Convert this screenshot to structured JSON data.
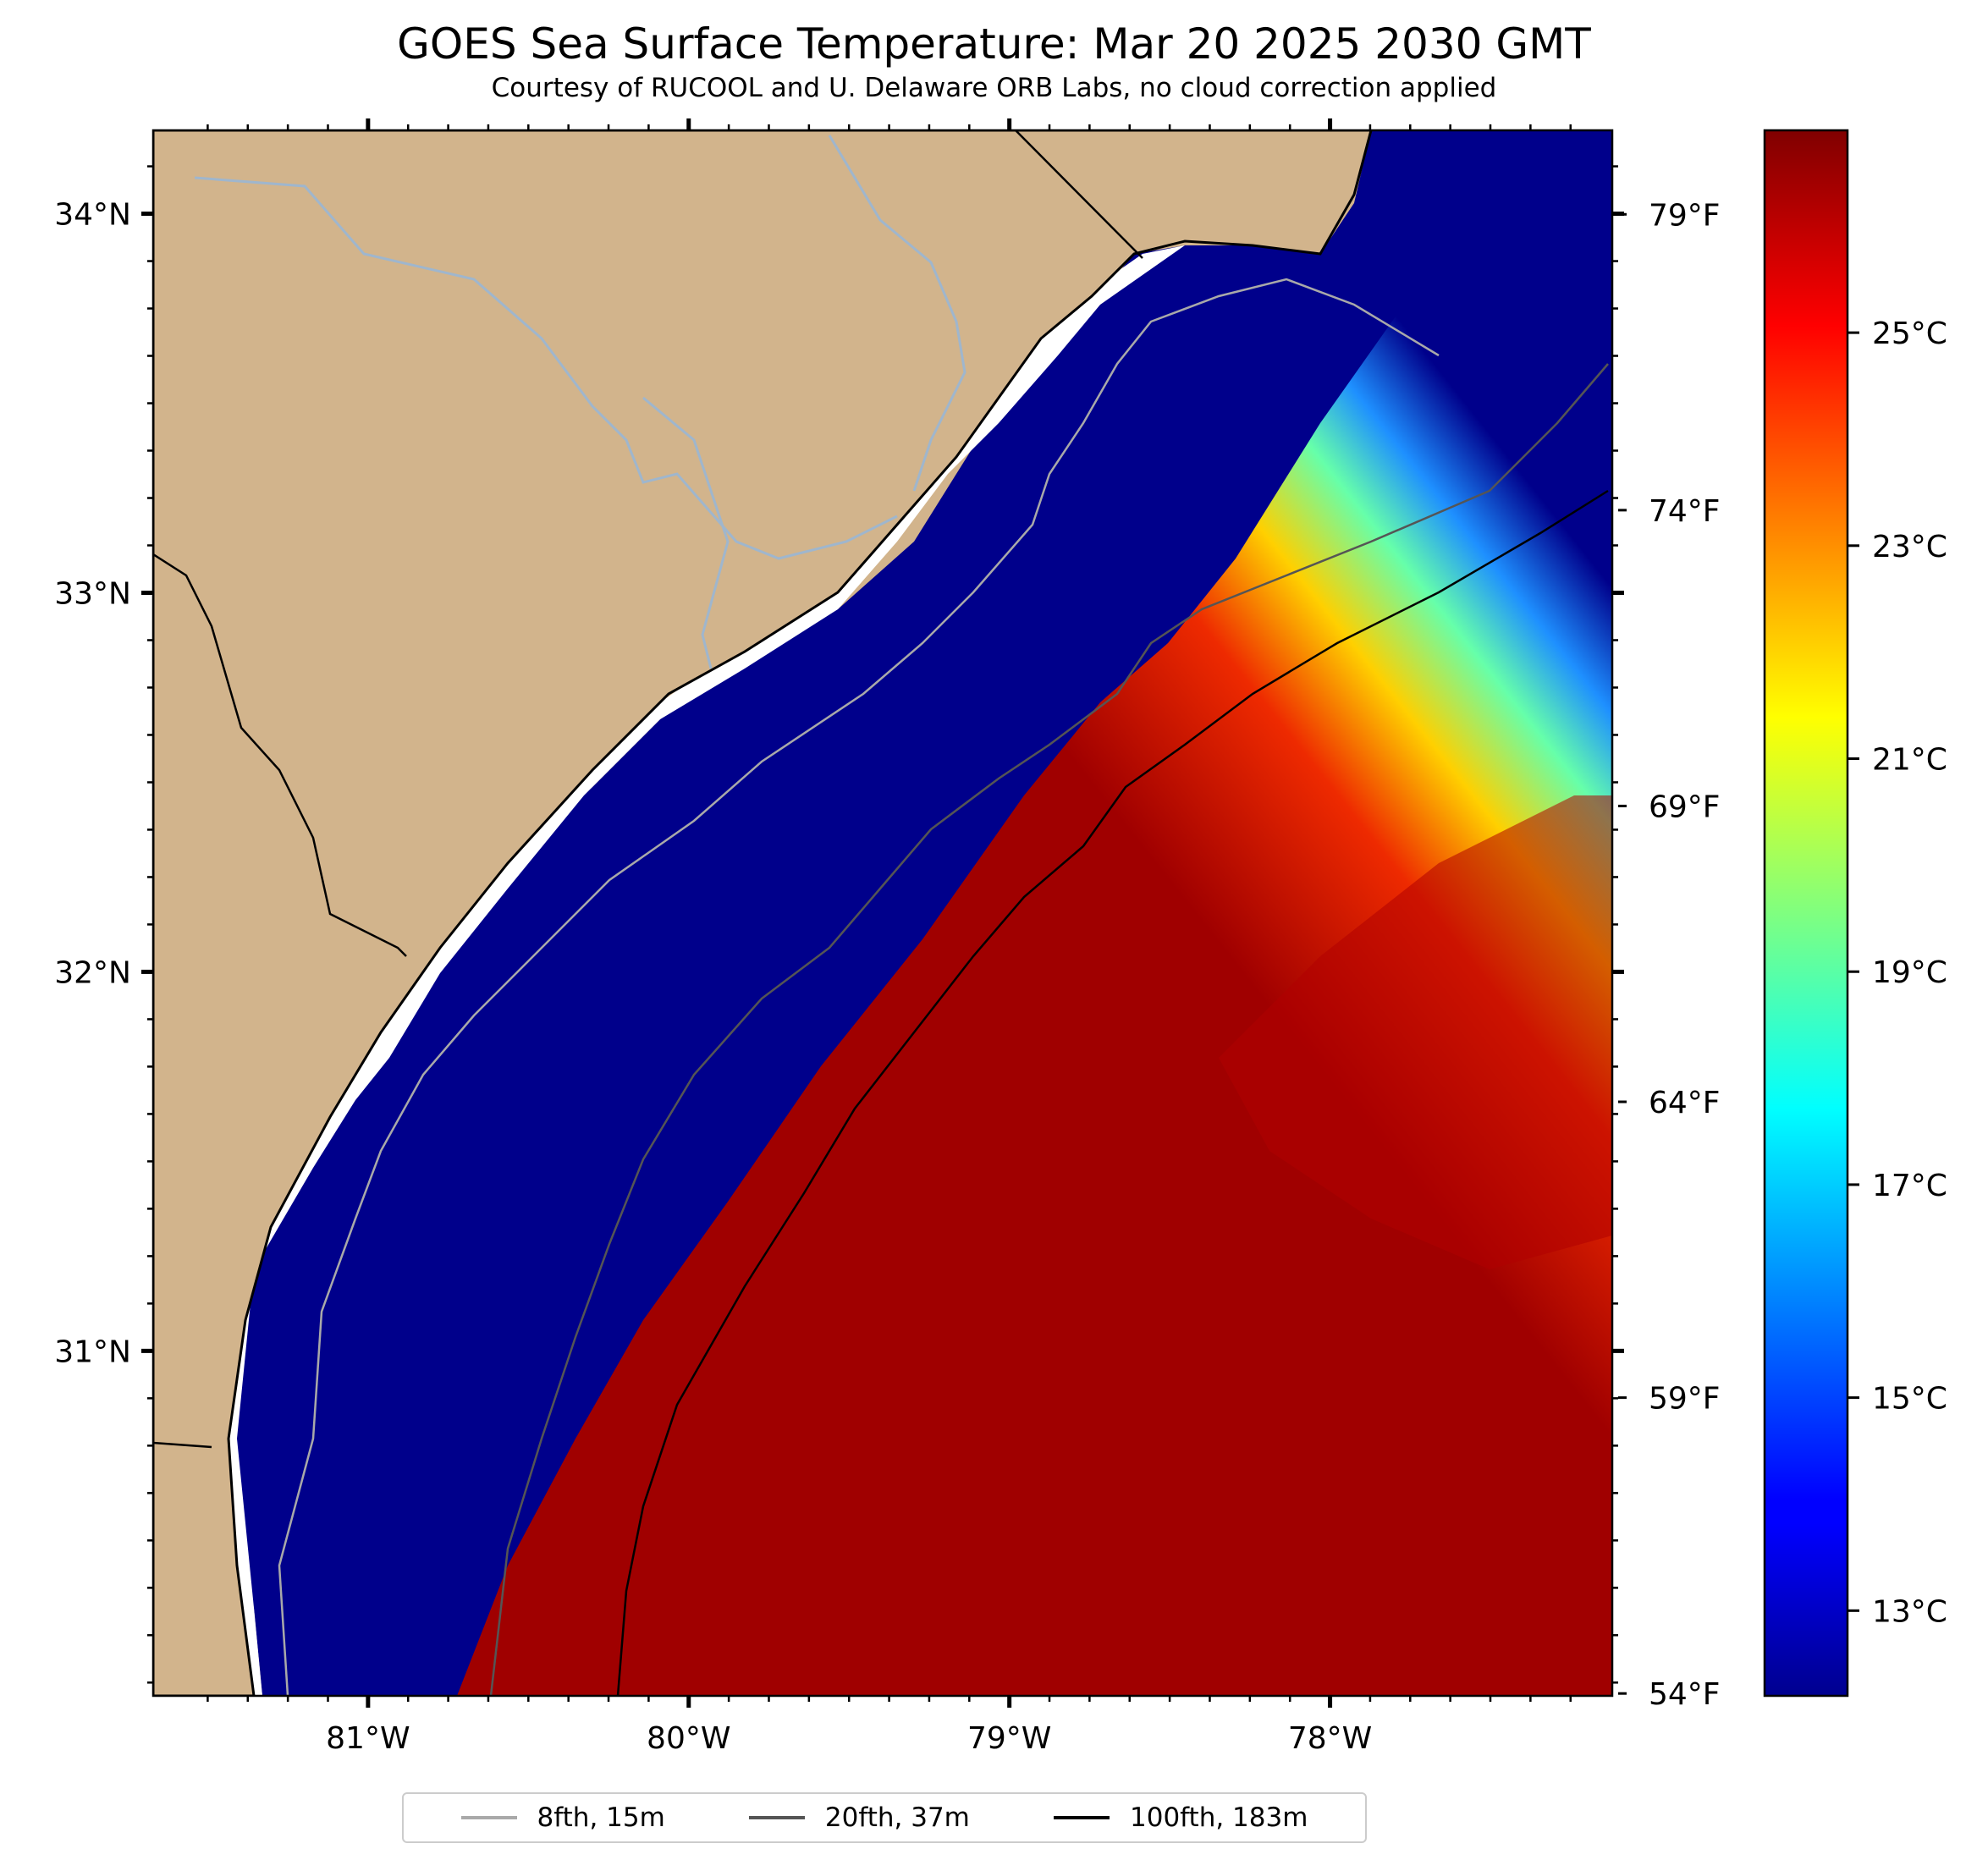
{
  "title": "GOES Sea Surface Temperature: Mar 20 2025 2030 GMT",
  "subtitle": "Courtesy of RUCOOL and U. Delaware ORB Labs, no cloud correction applied",
  "map": {
    "lat_labels": [
      "34°N",
      "33°N",
      "32°N",
      "31°N"
    ],
    "lon_labels": [
      "81°W",
      "80°W",
      "79°W",
      "78°W"
    ],
    "lat_values": [
      34,
      33,
      32,
      31
    ],
    "lon_values": [
      -81,
      -80,
      -79,
      -78
    ],
    "extent": {
      "lon_min": -81.67,
      "lon_max": -77.12,
      "lat_min": 30.09,
      "lat_max": 34.22
    },
    "fahrenheit_labels": [
      "79°F",
      "74°F",
      "69°F",
      "64°F",
      "59°F",
      "54°F"
    ],
    "fahrenheit_values": [
      79,
      74,
      69,
      64,
      59,
      54
    ]
  },
  "colorbar": {
    "labels": [
      "25°C",
      "23°C",
      "21°C",
      "19°C",
      "17°C",
      "15°C",
      "13°C"
    ],
    "values": [
      25,
      23,
      21,
      19,
      17,
      15,
      13
    ],
    "range": [
      12.2,
      26.9
    ],
    "colormap": "jet"
  },
  "legend": [
    {
      "label": "8fth, 15m",
      "color": "#a9a9a9"
    },
    {
      "label": "20fth, 37m",
      "color": "#555555"
    },
    {
      "label": "100fth, 183m",
      "color": "#000000"
    }
  ],
  "colors": {
    "land": "#d2b48c",
    "river": "#9fb6cd",
    "coast": "#000000",
    "no_data": "#ffffff",
    "cold": "#00008b"
  }
}
